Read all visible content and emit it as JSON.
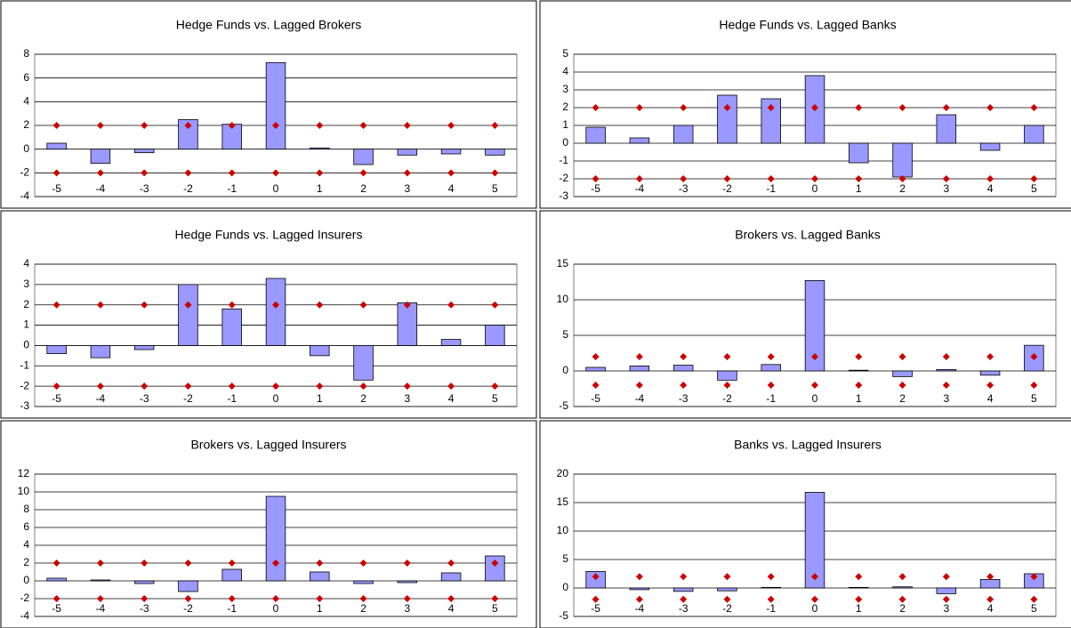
{
  "chart_data": [
    {
      "type": "bar",
      "title": "Hedge Funds vs. Lagged Brokers",
      "categories": [
        "-5",
        "-4",
        "-3",
        "-2",
        "-1",
        "0",
        "1",
        "2",
        "3",
        "4",
        "5"
      ],
      "series": [
        {
          "style": "bar",
          "color": "#9999ff",
          "values": [
            0.5,
            -1.2,
            -0.3,
            2.5,
            2.1,
            7.3,
            0.1,
            -1.3,
            -0.5,
            -0.4,
            -0.5
          ]
        },
        {
          "style": "diamond",
          "color": "#cc0000",
          "values": [
            2,
            2,
            2,
            2,
            2,
            2,
            2,
            2,
            2,
            2,
            2
          ]
        },
        {
          "style": "diamond",
          "color": "#cc0000",
          "values": [
            -2,
            -2,
            -2,
            -2,
            -2,
            -2,
            -2,
            -2,
            -2,
            -2,
            -2
          ]
        }
      ],
      "ylim": [
        -4,
        8
      ],
      "yticks": [
        -4,
        -2,
        0,
        2,
        4,
        6,
        8
      ],
      "grid": true
    },
    {
      "type": "bar",
      "title": "Hedge Funds vs. Lagged Banks",
      "categories": [
        "-5",
        "-4",
        "-3",
        "-2",
        "-1",
        "0",
        "1",
        "2",
        "3",
        "4",
        "5"
      ],
      "series": [
        {
          "style": "bar",
          "color": "#9999ff",
          "values": [
            0.9,
            0.3,
            1.0,
            2.7,
            2.5,
            3.8,
            -1.1,
            -1.9,
            1.6,
            -0.4,
            1.0
          ]
        },
        {
          "style": "diamond",
          "color": "#cc0000",
          "values": [
            2,
            2,
            2,
            2,
            2,
            2,
            2,
            2,
            2,
            2,
            2
          ]
        },
        {
          "style": "diamond",
          "color": "#cc0000",
          "values": [
            -2,
            -2,
            -2,
            -2,
            -2,
            -2,
            -2,
            -2,
            -2,
            -2,
            -2
          ]
        }
      ],
      "ylim": [
        -3,
        5
      ],
      "yticks": [
        -3,
        -2,
        -1,
        0,
        1,
        2,
        3,
        4,
        5
      ],
      "grid": true
    },
    {
      "type": "bar",
      "title": "Hedge Funds vs. Lagged Insurers",
      "categories": [
        "-5",
        "-4",
        "-3",
        "-2",
        "-1",
        "0",
        "1",
        "2",
        "3",
        "4",
        "5"
      ],
      "series": [
        {
          "style": "bar",
          "color": "#9999ff",
          "values": [
            -0.4,
            -0.6,
            -0.2,
            3.0,
            1.8,
            3.3,
            -0.5,
            -1.7,
            2.1,
            0.3,
            1.0
          ]
        },
        {
          "style": "diamond",
          "color": "#cc0000",
          "values": [
            2,
            2,
            2,
            2,
            2,
            2,
            2,
            2,
            2,
            2,
            2
          ]
        },
        {
          "style": "diamond",
          "color": "#cc0000",
          "values": [
            -2,
            -2,
            -2,
            -2,
            -2,
            -2,
            -2,
            -2,
            -2,
            -2,
            -2
          ]
        }
      ],
      "ylim": [
        -3,
        4
      ],
      "yticks": [
        -3,
        -2,
        -1,
        0,
        1,
        2,
        3,
        4
      ],
      "grid": true
    },
    {
      "type": "bar",
      "title": "Brokers vs. Lagged Banks",
      "categories": [
        "-5",
        "-4",
        "-3",
        "-2",
        "-1",
        "0",
        "1",
        "2",
        "3",
        "4",
        "5"
      ],
      "series": [
        {
          "style": "bar",
          "color": "#9999ff",
          "values": [
            0.5,
            0.7,
            0.8,
            -1.3,
            0.9,
            12.7,
            0.1,
            -0.8,
            0.2,
            -0.6,
            3.6
          ]
        },
        {
          "style": "diamond",
          "color": "#cc0000",
          "values": [
            2,
            2,
            2,
            2,
            2,
            2,
            2,
            2,
            2,
            2,
            2
          ]
        },
        {
          "style": "diamond",
          "color": "#cc0000",
          "values": [
            -2,
            -2,
            -2,
            -2,
            -2,
            -2,
            -2,
            -2,
            -2,
            -2,
            -2
          ]
        }
      ],
      "ylim": [
        -5,
        15
      ],
      "yticks": [
        -5,
        0,
        5,
        10,
        15
      ],
      "grid": true
    },
    {
      "type": "bar",
      "title": "Brokers vs. Lagged Insurers",
      "categories": [
        "-5",
        "-4",
        "-3",
        "-2",
        "-1",
        "0",
        "1",
        "2",
        "3",
        "4",
        "5"
      ],
      "series": [
        {
          "style": "bar",
          "color": "#9999ff",
          "values": [
            0.3,
            0.1,
            -0.3,
            -1.2,
            1.3,
            9.5,
            1.0,
            -0.3,
            -0.2,
            0.9,
            2.8
          ]
        },
        {
          "style": "diamond",
          "color": "#cc0000",
          "values": [
            2,
            2,
            2,
            2,
            2,
            2,
            2,
            2,
            2,
            2,
            2
          ]
        },
        {
          "style": "diamond",
          "color": "#cc0000",
          "values": [
            -2,
            -2,
            -2,
            -2,
            -2,
            -2,
            -2,
            -2,
            -2,
            -2,
            -2
          ]
        }
      ],
      "ylim": [
        -4,
        12
      ],
      "yticks": [
        -4,
        -2,
        0,
        2,
        4,
        6,
        8,
        10,
        12
      ],
      "grid": true
    },
    {
      "type": "bar",
      "title": "Banks vs. Lagged Insurers",
      "categories": [
        "-5",
        "-4",
        "-3",
        "-2",
        "-1",
        "0",
        "1",
        "2",
        "3",
        "4",
        "5"
      ],
      "series": [
        {
          "style": "bar",
          "color": "#9999ff",
          "values": [
            2.9,
            -0.3,
            -0.6,
            -0.5,
            0.1,
            16.8,
            0.1,
            0.2,
            -1.0,
            1.5,
            2.5
          ]
        },
        {
          "style": "diamond",
          "color": "#cc0000",
          "values": [
            2,
            2,
            2,
            2,
            2,
            2,
            2,
            2,
            2,
            2,
            2
          ]
        },
        {
          "style": "diamond",
          "color": "#cc0000",
          "values": [
            -2,
            -2,
            -2,
            -2,
            -2,
            -2,
            -2,
            -2,
            -2,
            -2,
            -2
          ]
        }
      ],
      "ylim": [
        -5,
        20
      ],
      "yticks": [
        -5,
        0,
        5,
        10,
        15,
        20
      ],
      "grid": true
    }
  ]
}
